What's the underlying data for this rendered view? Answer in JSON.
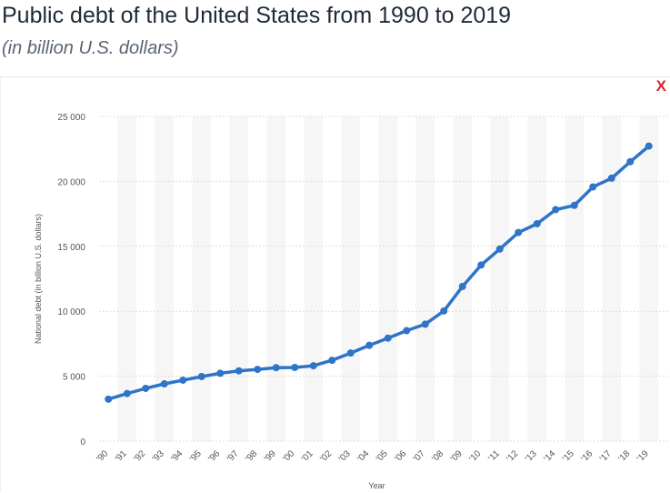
{
  "header": {
    "title": "Public debt of the United States from 1990 to 2019",
    "subtitle": "(in billion U.S. dollars)",
    "close_label": "X"
  },
  "colors": {
    "line": "#2e74c7",
    "band": "#f6f6f6",
    "grid": "#cfd3d6",
    "close": "#d8242a"
  },
  "chart_data": {
    "type": "line",
    "title": "Public debt of the United States from 1990 to 2019",
    "subtitle": "(in billion U.S. dollars)",
    "xlabel": "Year",
    "ylabel": "National debt (in billion U.S. dollars)",
    "ylim": [
      0,
      25000
    ],
    "yticks": [
      0,
      5000,
      10000,
      15000,
      20000,
      25000
    ],
    "ytick_labels": [
      "0",
      "5 000",
      "10 000",
      "15 000",
      "20 000",
      "25 000"
    ],
    "grid": true,
    "categories": [
      "'90",
      "'91",
      "'92",
      "'93",
      "'94",
      "'95",
      "'96",
      "'97",
      "'98",
      "'99",
      "'00",
      "'01",
      "'02",
      "'03",
      "'04",
      "'05",
      "'06",
      "'07",
      "'08",
      "'09",
      "'10",
      "'11",
      "'12",
      "'13",
      "'14",
      "'15",
      "'16",
      "'17",
      "'18",
      "'19"
    ],
    "series": [
      {
        "values": [
          3233,
          3665,
          4065,
          4411,
          4693,
          4974,
          5225,
          5413,
          5526,
          5656,
          5674,
          5807,
          6228,
          6783,
          7379,
          7933,
          8507,
          9008,
          10025,
          11910,
          13562,
          14790,
          16066,
          16738,
          17824,
          18151,
          19573,
          20245,
          21516,
          22719
        ]
      }
    ]
  }
}
